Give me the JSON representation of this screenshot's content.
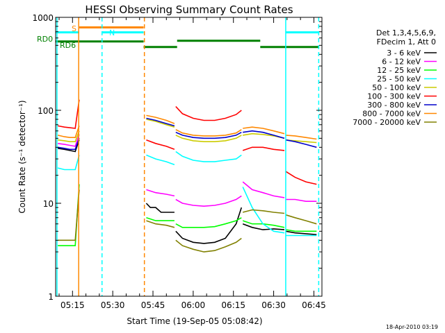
{
  "chart_data": {
    "type": "line",
    "title": "HESSI Observing Summary Count Rates",
    "xlabel": "Start Time (19-Sep-05 05:08:42)",
    "ylabel": "Count Rate (s⁻¹ detector⁻¹)",
    "yscale": "log",
    "ylim": [
      1,
      1000
    ],
    "xlim_minutes_after_0500": [
      8.7,
      108
    ],
    "x_ticks": [
      "05:15",
      "05:30",
      "05:45",
      "06:00",
      "06:15",
      "06:30",
      "06:45"
    ],
    "y_ticks": [
      "1",
      "10",
      "100",
      "1000"
    ],
    "legend_header": [
      "Det 1,3,4,5,6,9,",
      "FDecim 1, Att 0"
    ],
    "legend_placement": "right",
    "timestamp": "18-Apr-2010 03:19",
    "flag_labels": {
      "s": "S",
      "n": "N",
      "rd0": "RD0",
      "rd6": "RD6"
    },
    "series": [
      {
        "name": "3 - 6 keV",
        "color": "#000000",
        "segments": [
          [
            [
              9.5,
              39
            ],
            [
              12,
              38
            ],
            [
              14,
              37
            ],
            [
              16,
              36
            ],
            [
              17.5,
              48
            ]
          ],
          [
            [
              42.5,
              10
            ],
            [
              44,
              9
            ],
            [
              46,
              9
            ],
            [
              48,
              8
            ],
            [
              50,
              8
            ],
            [
              53,
              8
            ]
          ],
          [
            [
              53.5,
              5
            ],
            [
              56,
              4.2
            ],
            [
              60,
              3.8
            ],
            [
              64,
              3.7
            ],
            [
              68,
              3.8
            ],
            [
              72,
              4.2
            ],
            [
              76,
              6
            ],
            [
              78,
              9
            ]
          ],
          [
            [
              78.5,
              6
            ],
            [
              82,
              5.5
            ],
            [
              86,
              5.2
            ],
            [
              90,
              5.3
            ],
            [
              94,
              5.2
            ]
          ],
          [
            [
              94.5,
              5
            ],
            [
              98,
              4.8
            ],
            [
              102,
              4.7
            ],
            [
              106,
              4.6
            ]
          ]
        ]
      },
      {
        "name": "6 - 12 keV",
        "color": "#ff00ff",
        "segments": [
          [
            [
              9.5,
              44
            ],
            [
              12,
              43
            ],
            [
              14,
              42
            ],
            [
              16,
              41
            ],
            [
              17.5,
              55
            ]
          ],
          [
            [
              42.5,
              14
            ],
            [
              46,
              13
            ],
            [
              50,
              12.5
            ],
            [
              53,
              12
            ]
          ],
          [
            [
              53.5,
              11
            ],
            [
              56,
              10
            ],
            [
              60,
              9.5
            ],
            [
              64,
              9.3
            ],
            [
              68,
              9.5
            ],
            [
              72,
              10
            ],
            [
              76,
              11
            ],
            [
              78,
              12
            ]
          ],
          [
            [
              78.5,
              17
            ],
            [
              82,
              14
            ],
            [
              86,
              13
            ],
            [
              90,
              12
            ],
            [
              94,
              11.5
            ]
          ],
          [
            [
              94.5,
              11
            ],
            [
              98,
              11
            ],
            [
              102,
              10.5
            ],
            [
              106,
              10.5
            ]
          ]
        ]
      },
      {
        "name": "12 - 25 keV",
        "color": "#00ff00",
        "segments": [
          [
            [
              9.5,
              3.5
            ],
            [
              12,
              3.5
            ],
            [
              14,
              3.5
            ],
            [
              16,
              3.5
            ],
            [
              17.5,
              16
            ]
          ],
          [
            [
              42.5,
              7
            ],
            [
              46,
              6.5
            ],
            [
              50,
              6.5
            ],
            [
              53,
              6.5
            ]
          ],
          [
            [
              53.5,
              6
            ],
            [
              56,
              5.5
            ],
            [
              60,
              5.5
            ],
            [
              64,
              5.5
            ],
            [
              68,
              5.6
            ],
            [
              72,
              6
            ],
            [
              76,
              6.5
            ],
            [
              78,
              7
            ]
          ],
          [
            [
              78.5,
              6.5
            ],
            [
              82,
              6
            ],
            [
              86,
              6
            ],
            [
              90,
              5.8
            ],
            [
              94,
              5.5
            ]
          ],
          [
            [
              94.5,
              5.2
            ],
            [
              98,
              5
            ],
            [
              102,
              5
            ],
            [
              106,
              5
            ]
          ]
        ]
      },
      {
        "name": "25 - 50 keV",
        "color": "#00ffff",
        "segments": [
          [
            [
              9.5,
              24
            ],
            [
              12,
              23
            ],
            [
              14,
              23
            ],
            [
              16,
              23
            ],
            [
              17.5,
              33
            ]
          ],
          [
            [
              42.5,
              33
            ],
            [
              46,
              30
            ],
            [
              50,
              28
            ],
            [
              53,
              26
            ]
          ],
          [
            [
              53.5,
              36
            ],
            [
              56,
              32
            ],
            [
              60,
              29
            ],
            [
              64,
              28
            ],
            [
              68,
              28
            ],
            [
              72,
              29
            ],
            [
              76,
              30
            ],
            [
              78,
              33
            ]
          ],
          [
            [
              78.5,
              15
            ],
            [
              82,
              9
            ],
            [
              86,
              6
            ],
            [
              90,
              5
            ],
            [
              94,
              4.8
            ]
          ],
          [
            [
              94.5,
              4.5
            ],
            [
              98,
              4.5
            ],
            [
              102,
              4.5
            ],
            [
              106,
              4.5
            ]
          ]
        ]
      },
      {
        "name": "50 - 100 keV",
        "color": "#cccc00",
        "segments": [
          [
            [
              9.5,
              48
            ],
            [
              12,
              47
            ],
            [
              14,
              46
            ],
            [
              16,
              46
            ],
            [
              17.5,
              60
            ]
          ],
          [
            [
              42.5,
              80
            ],
            [
              46,
              76
            ],
            [
              50,
              70
            ],
            [
              53,
              66
            ]
          ],
          [
            [
              53.5,
              54
            ],
            [
              56,
              50
            ],
            [
              60,
              47
            ],
            [
              64,
              46
            ],
            [
              68,
              46
            ],
            [
              72,
              47
            ],
            [
              76,
              50
            ],
            [
              78,
              54
            ]
          ],
          [
            [
              78.5,
              54
            ],
            [
              82,
              56
            ],
            [
              86,
              55
            ],
            [
              90,
              53
            ],
            [
              94,
              50
            ]
          ],
          [
            [
              94.5,
              48
            ],
            [
              98,
              47
            ],
            [
              102,
              46
            ],
            [
              106,
              45
            ]
          ]
        ]
      },
      {
        "name": "100 - 300 keV",
        "color": "#ff0000",
        "segments": [
          [
            [
              9.5,
              68
            ],
            [
              12,
              66
            ],
            [
              14,
              65
            ],
            [
              16,
              64
            ],
            [
              17.5,
              130
            ]
          ],
          [
            [
              42.5,
              48
            ],
            [
              46,
              44
            ],
            [
              50,
              41
            ],
            [
              53,
              38
            ]
          ],
          [
            [
              53.5,
              110
            ],
            [
              56,
              92
            ],
            [
              60,
              82
            ],
            [
              64,
              78
            ],
            [
              68,
              78
            ],
            [
              72,
              82
            ],
            [
              76,
              90
            ],
            [
              78,
              100
            ]
          ],
          [
            [
              78.5,
              37
            ],
            [
              82,
              40
            ],
            [
              86,
              40
            ],
            [
              90,
              38
            ],
            [
              94,
              37
            ]
          ],
          [
            [
              94.5,
              22
            ],
            [
              98,
              19
            ],
            [
              102,
              17
            ],
            [
              106,
              16
            ]
          ]
        ]
      },
      {
        "name": "300 - 800 keV",
        "color": "#0000cc",
        "segments": [
          [
            [
              9.5,
              40
            ],
            [
              12,
              39
            ],
            [
              14,
              38
            ],
            [
              16,
              38
            ],
            [
              17.5,
              50
            ]
          ],
          [
            [
              42.5,
              82
            ],
            [
              46,
              78
            ],
            [
              50,
              72
            ],
            [
              53,
              68
            ]
          ],
          [
            [
              53.5,
              58
            ],
            [
              56,
              54
            ],
            [
              60,
              51
            ],
            [
              64,
              50
            ],
            [
              68,
              50
            ],
            [
              72,
              51
            ],
            [
              76,
              54
            ],
            [
              78,
              58
            ]
          ],
          [
            [
              78.5,
              58
            ],
            [
              82,
              60
            ],
            [
              86,
              58
            ],
            [
              90,
              54
            ],
            [
              94,
              50
            ]
          ],
          [
            [
              94.5,
              48
            ],
            [
              98,
              46
            ],
            [
              102,
              43
            ],
            [
              106,
              40
            ]
          ]
        ]
      },
      {
        "name": "800 - 7000 keV",
        "color": "#ff8800",
        "segments": [
          [
            [
              9.5,
              54
            ],
            [
              12,
              52
            ],
            [
              14,
              51
            ],
            [
              16,
              51
            ],
            [
              17.5,
              68
            ]
          ],
          [
            [
              42.5,
              88
            ],
            [
              46,
              84
            ],
            [
              50,
              78
            ],
            [
              53,
              72
            ]
          ],
          [
            [
              53.5,
              62
            ],
            [
              56,
              57
            ],
            [
              60,
              54
            ],
            [
              64,
              53
            ],
            [
              68,
              53
            ],
            [
              72,
              54
            ],
            [
              76,
              57
            ],
            [
              78,
              62
            ]
          ],
          [
            [
              78.5,
              64
            ],
            [
              82,
              66
            ],
            [
              86,
              64
            ],
            [
              90,
              60
            ],
            [
              94,
              56
            ]
          ],
          [
            [
              94.5,
              54
            ],
            [
              98,
              53
            ],
            [
              102,
              51
            ],
            [
              106,
              49
            ]
          ]
        ]
      },
      {
        "name": "7000 - 20000 keV",
        "color": "#808000",
        "segments": [
          [
            [
              9.5,
              4
            ],
            [
              12,
              4
            ],
            [
              14,
              4
            ],
            [
              16,
              4
            ],
            [
              17.5,
              14
            ]
          ],
          [
            [
              42.5,
              6.5
            ],
            [
              46,
              6
            ],
            [
              50,
              5.8
            ],
            [
              53,
              5.5
            ]
          ],
          [
            [
              53.5,
              4
            ],
            [
              56,
              3.5
            ],
            [
              60,
              3.2
            ],
            [
              64,
              3
            ],
            [
              68,
              3.1
            ],
            [
              72,
              3.4
            ],
            [
              76,
              3.8
            ],
            [
              78,
              4.2
            ]
          ],
          [
            [
              78.5,
              8
            ],
            [
              82,
              8.5
            ],
            [
              86,
              8.3
            ],
            [
              90,
              8
            ],
            [
              94,
              7.8
            ]
          ],
          [
            [
              94.5,
              7.5
            ],
            [
              98,
              7
            ],
            [
              102,
              6.5
            ],
            [
              106,
              6
            ]
          ]
        ]
      }
    ],
    "flags": {
      "s_bar_minutes": [
        17.5,
        41.5
      ],
      "n_bar_minutes": [
        [
          8.7,
          17.5
        ],
        [
          26,
          41.5
        ],
        [
          94.5,
          107
        ]
      ],
      "rd_segments_minutes": [
        [
          [
            8.7,
            41.5
          ],
          550
        ],
        [
          [
            41.5,
            54
          ],
          480
        ],
        [
          [
            54,
            85
          ],
          560
        ],
        [
          [
            85,
            107
          ],
          480
        ]
      ],
      "saa_night_lines_minutes": [
        {
          "t": 9.2,
          "color": "#00ffff",
          "dash": false
        },
        {
          "t": 17.3,
          "color": "#ff8800",
          "dash": false
        },
        {
          "t": 26,
          "color": "#00ffff",
          "dash": true
        },
        {
          "t": 41.8,
          "color": "#ff8800",
          "dash": true
        },
        {
          "t": 94.5,
          "color": "#00ffff",
          "dash": false
        },
        {
          "t": 106.8,
          "color": "#00ffff",
          "dash": true
        }
      ]
    }
  },
  "colors": {
    "axes": "#000000",
    "s_bar": "#ff8800",
    "n_bar": "#00ffff",
    "rd_flag": "#008000"
  }
}
